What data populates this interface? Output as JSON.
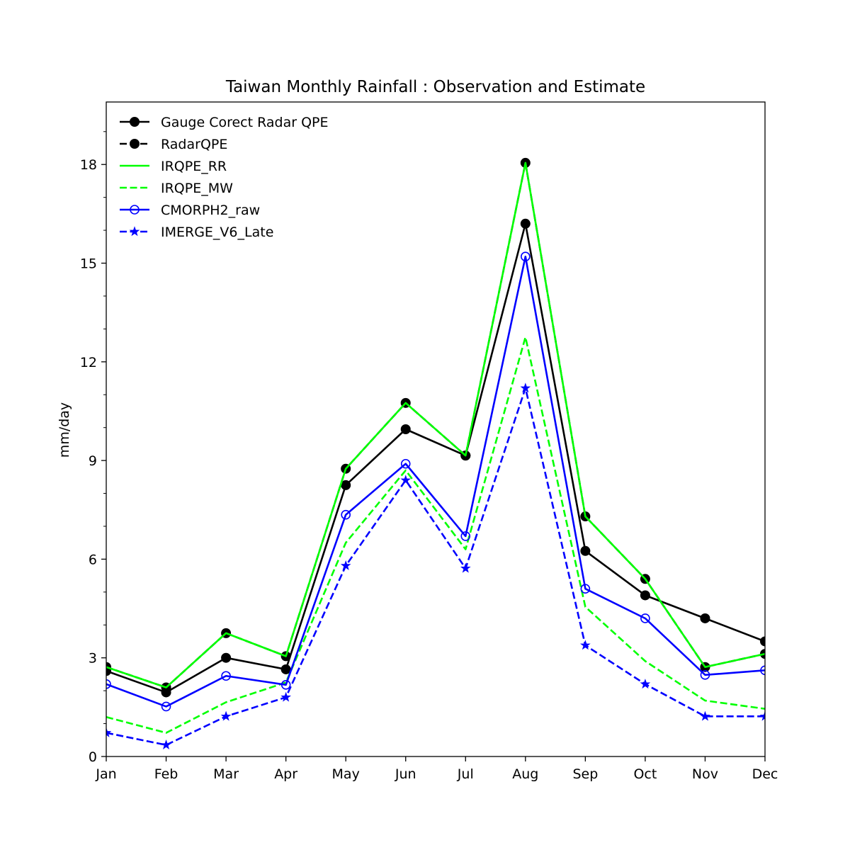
{
  "chart_data": {
    "type": "line",
    "title": "Taiwan Monthly Rainfall : Observation and Estimate",
    "xlabel": "",
    "ylabel": "mm/day",
    "categories": [
      "Jan",
      "Feb",
      "Mar",
      "Apr",
      "May",
      "Jun",
      "Jul",
      "Aug",
      "Sep",
      "Oct",
      "Nov",
      "Dec"
    ],
    "ylim": [
      0,
      19.9
    ],
    "yticks": [
      0,
      3,
      6,
      9,
      12,
      15,
      18
    ],
    "yticks_minor_step": 1,
    "grid": false,
    "legend_position": "upper-left",
    "series": [
      {
        "name": "Gauge Corect Radar QPE",
        "color": "#000000",
        "dash": "solid",
        "marker": "filled-circle",
        "values": [
          2.6,
          1.95,
          3.0,
          2.65,
          8.25,
          9.95,
          9.15,
          16.2,
          6.25,
          4.9,
          4.2,
          3.5
        ]
      },
      {
        "name": "RadarQPE",
        "color": "#000000",
        "dash": "dashed",
        "marker": "filled-circle",
        "values": [
          2.72,
          2.1,
          3.75,
          3.05,
          8.75,
          10.75,
          9.15,
          18.05,
          7.3,
          5.4,
          2.72,
          3.12
        ]
      },
      {
        "name": "IRQPE_RR",
        "color": "#00ff00",
        "dash": "solid",
        "marker": "none",
        "values": [
          2.72,
          2.1,
          3.75,
          3.05,
          8.75,
          10.75,
          9.15,
          18.05,
          7.3,
          5.4,
          2.72,
          3.12
        ]
      },
      {
        "name": "IRQPE_MW",
        "color": "#00ff00",
        "dash": "dashed",
        "marker": "none",
        "values": [
          1.2,
          0.72,
          1.65,
          2.25,
          6.5,
          8.7,
          6.3,
          12.75,
          4.55,
          2.9,
          1.7,
          1.45
        ]
      },
      {
        "name": "CMORPH2_raw",
        "color": "#0000ff",
        "dash": "solid",
        "marker": "open-circle",
        "values": [
          2.2,
          1.52,
          2.45,
          2.18,
          7.35,
          8.9,
          6.7,
          15.2,
          5.1,
          4.2,
          2.48,
          2.62
        ]
      },
      {
        "name": "IMERGE_V6_Late",
        "color": "#0000ff",
        "dash": "dashed",
        "marker": "star",
        "values": [
          0.72,
          0.35,
          1.22,
          1.8,
          5.8,
          8.4,
          5.72,
          11.2,
          3.38,
          2.2,
          1.22,
          1.22
        ]
      }
    ]
  }
}
